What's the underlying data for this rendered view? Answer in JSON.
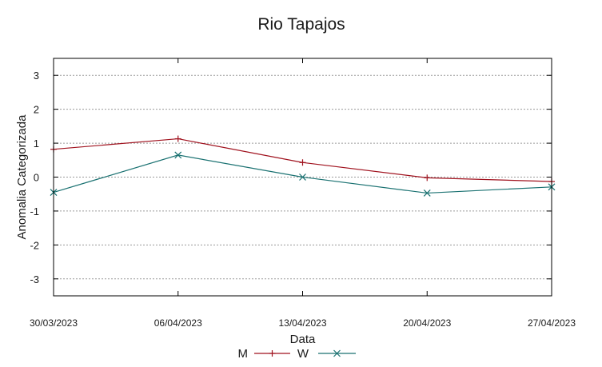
{
  "chart_data": {
    "type": "line",
    "title": "Rio Tapajos",
    "xlabel": "Data",
    "ylabel": "Anomalia Categorizada",
    "x": [
      "30/03/2023",
      "06/04/2023",
      "13/04/2023",
      "20/04/2023",
      "27/04/2023"
    ],
    "ylim": [
      -3.5,
      3.5
    ],
    "yticks": [
      -3,
      -2,
      -1,
      0,
      1,
      2,
      3
    ],
    "grid": true,
    "legend_position": "bottom-center",
    "series": [
      {
        "name": "M",
        "color": "#a0121e",
        "marker": "plus",
        "values": [
          0.82,
          1.13,
          0.43,
          -0.02,
          -0.13
        ]
      },
      {
        "name": "W",
        "color": "#1b7272",
        "marker": "cross",
        "values": [
          -0.45,
          0.65,
          0.0,
          -0.47,
          -0.29
        ]
      }
    ]
  }
}
